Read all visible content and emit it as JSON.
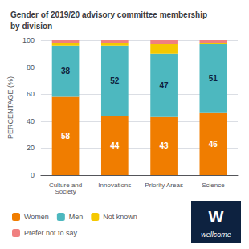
{
  "chart_data": {
    "type": "bar",
    "title": "Gender of 2019/20 advisory committee membership\nby division",
    "categories": [
      "Culture and\nSociety",
      "Innovations",
      "Priority Areas",
      "Science"
    ],
    "series": [
      {
        "name": "Women",
        "color": "#f07d00",
        "values": [
          58,
          44,
          43,
          46
        ],
        "data_labels": true
      },
      {
        "name": "Men",
        "color": "#4db8bf",
        "values": [
          38,
          52,
          47,
          51
        ],
        "data_labels": true
      },
      {
        "name": "Not known",
        "color": "#f5c800",
        "values": [
          2,
          2,
          7,
          1
        ]
      },
      {
        "name": "Prefer not to say",
        "color": "#f08080",
        "values": [
          2,
          2,
          3,
          2
        ]
      }
    ],
    "ylabel": "PERCENTAGE (%)",
    "ylim": [
      0,
      100
    ],
    "yticks": [
      0,
      20,
      40,
      60,
      80,
      100
    ],
    "stacked": true,
    "grid": true,
    "legend": "bottom",
    "annotations": [
      "W",
      "wellcome"
    ]
  }
}
